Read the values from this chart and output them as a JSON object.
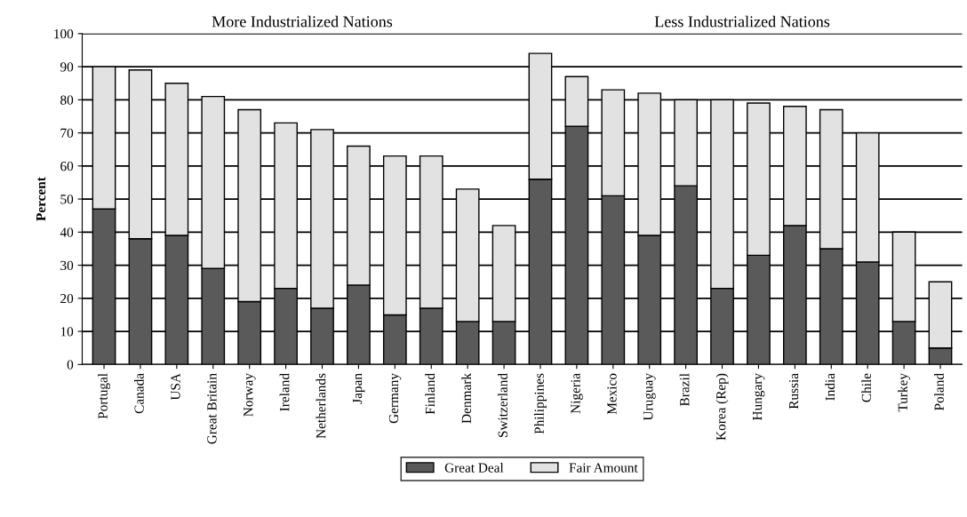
{
  "chart_data": {
    "type": "bar",
    "stacked": true,
    "ylabel": "Percent",
    "annotations": [
      "More Industrialized Nations",
      "Less Industrialized Nations"
    ],
    "categories": [
      "Portugal",
      "Canada",
      "USA",
      "Great Britain",
      "Norway",
      "Ireland",
      "Netherlands",
      "Japan",
      "Germany",
      "Finland",
      "Denmark",
      "Switzerland",
      "Philippines",
      "Nigeria",
      "Mexico",
      "Uruguay",
      "Brazil",
      "Korea (Rep)",
      "Hungary",
      "Russia",
      "India",
      "Chile",
      "Turkey",
      "Poland"
    ],
    "series": [
      {
        "name": "Great Deal",
        "color": "#5a5a5a",
        "values": [
          47,
          38,
          39,
          29,
          19,
          23,
          17,
          24,
          15,
          17,
          13,
          13,
          56,
          72,
          51,
          39,
          54,
          23,
          33,
          42,
          35,
          31,
          13,
          5
        ]
      },
      {
        "name": "Fair Amount",
        "color": "#e2e2e2",
        "values": [
          43,
          51,
          46,
          52,
          58,
          50,
          54,
          42,
          48,
          46,
          40,
          29,
          38,
          15,
          32,
          43,
          26,
          57,
          46,
          36,
          42,
          39,
          27,
          20
        ]
      }
    ],
    "ylim": [
      0,
      100
    ],
    "yticks": [
      0,
      10,
      20,
      30,
      40,
      50,
      60,
      70,
      80,
      90,
      100
    ],
    "grid": "y",
    "legend": "bottom"
  }
}
